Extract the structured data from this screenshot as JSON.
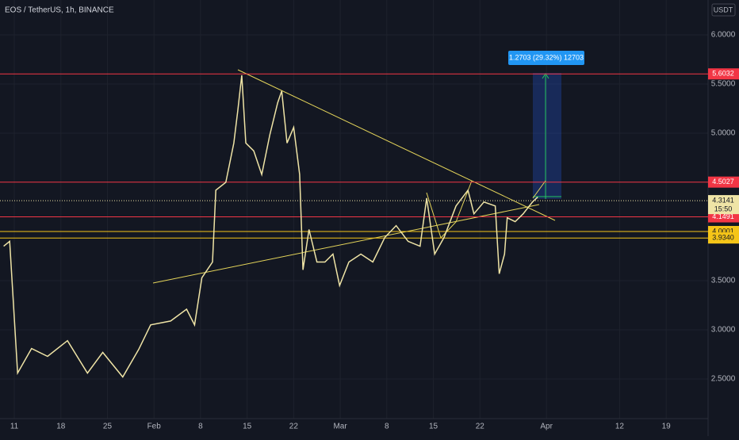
{
  "chart_data": {
    "type": "line",
    "title": "EOS / TetherUS, 1h, BINANCE",
    "currency": "USDT",
    "x": [
      9.4,
      10.3,
      11.5,
      13.6,
      16.0,
      19.0,
      22.0,
      24.3,
      27.3,
      29.7,
      31.5,
      34.5,
      36.9,
      38.1,
      39.2,
      40.8,
      41.3,
      42.8,
      44.0,
      44.6,
      45.2,
      45.8,
      47.0,
      48.2,
      49.4,
      50.6,
      51.2,
      52.0,
      53.0,
      53.9,
      54.4,
      55.3,
      56.5,
      57.7,
      58.9,
      59.9,
      61.3,
      63.1,
      64.9,
      66.7,
      68.4,
      70.2,
      72.0,
      73.0,
      74.2,
      75.6,
      77.4,
      79.2,
      80.1,
      81.6,
      83.3,
      83.9,
      84.7,
      85.1,
      86.3,
      87.5,
      88.9,
      89.7
    ],
    "series": [
      {
        "color": "#efe4a6",
        "values": [
          3.85,
          3.9,
          2.56,
          2.81,
          2.73,
          2.89,
          2.56,
          2.77,
          2.52,
          2.8,
          3.05,
          3.09,
          3.21,
          3.05,
          3.53,
          3.69,
          4.42,
          4.5,
          4.9,
          5.23,
          5.59,
          4.9,
          4.82,
          4.58,
          4.98,
          5.31,
          5.43,
          4.9,
          5.06,
          4.58,
          3.61,
          4.02,
          3.69,
          3.69,
          3.77,
          3.45,
          3.69,
          3.77,
          3.69,
          3.94,
          4.06,
          3.9,
          3.85,
          4.34,
          3.77,
          3.94,
          4.26,
          4.42,
          4.18,
          4.3,
          4.26,
          3.57,
          3.77,
          4.14,
          4.1,
          4.18,
          4.3,
          4.35
        ]
      }
    ],
    "xlim": [
      8.85,
      115.3
    ],
    "ylim": [
      2.097,
      6.355
    ],
    "xticks": [
      {
        "value": 11,
        "label": "11"
      },
      {
        "value": 18,
        "label": "18"
      },
      {
        "value": 25,
        "label": "25"
      },
      {
        "value": 32,
        "label": "Feb"
      },
      {
        "value": 39,
        "label": "8"
      },
      {
        "value": 46,
        "label": "15"
      },
      {
        "value": 53,
        "label": "22"
      },
      {
        "value": 60,
        "label": "Mar"
      },
      {
        "value": 67,
        "label": "8"
      },
      {
        "value": 74,
        "label": "15"
      },
      {
        "value": 81,
        "label": "22"
      },
      {
        "value": 91,
        "label": "Apr"
      },
      {
        "value": 102,
        "label": "12"
      },
      {
        "value": 109,
        "label": "19"
      }
    ],
    "yticks": [
      {
        "value": 2.5,
        "label": "2.5000"
      },
      {
        "value": 3,
        "label": "3.0000"
      },
      {
        "value": 3.5,
        "label": "3.5000"
      },
      {
        "value": 5,
        "label": "5.0000"
      },
      {
        "value": 5.5,
        "label": "5.5000"
      },
      {
        "value": 6,
        "label": "6.0000"
      }
    ],
    "grid": true,
    "price_lines": {
      "values": [
        5.6032,
        4.5027,
        4.1491,
        4.0001,
        3.934
      ],
      "value_labels": [
        "5.6032",
        "4.5027",
        "4.1491",
        "4.0001",
        "3.9340"
      ],
      "colors": [
        "#f23645",
        "#f23645",
        "#f23645",
        "#f5c518",
        "#f5c518"
      ]
    },
    "last_price": 4.3141,
    "countdown": "15:50",
    "measure_label": "1.2703 (29.32%) 12703"
  }
}
